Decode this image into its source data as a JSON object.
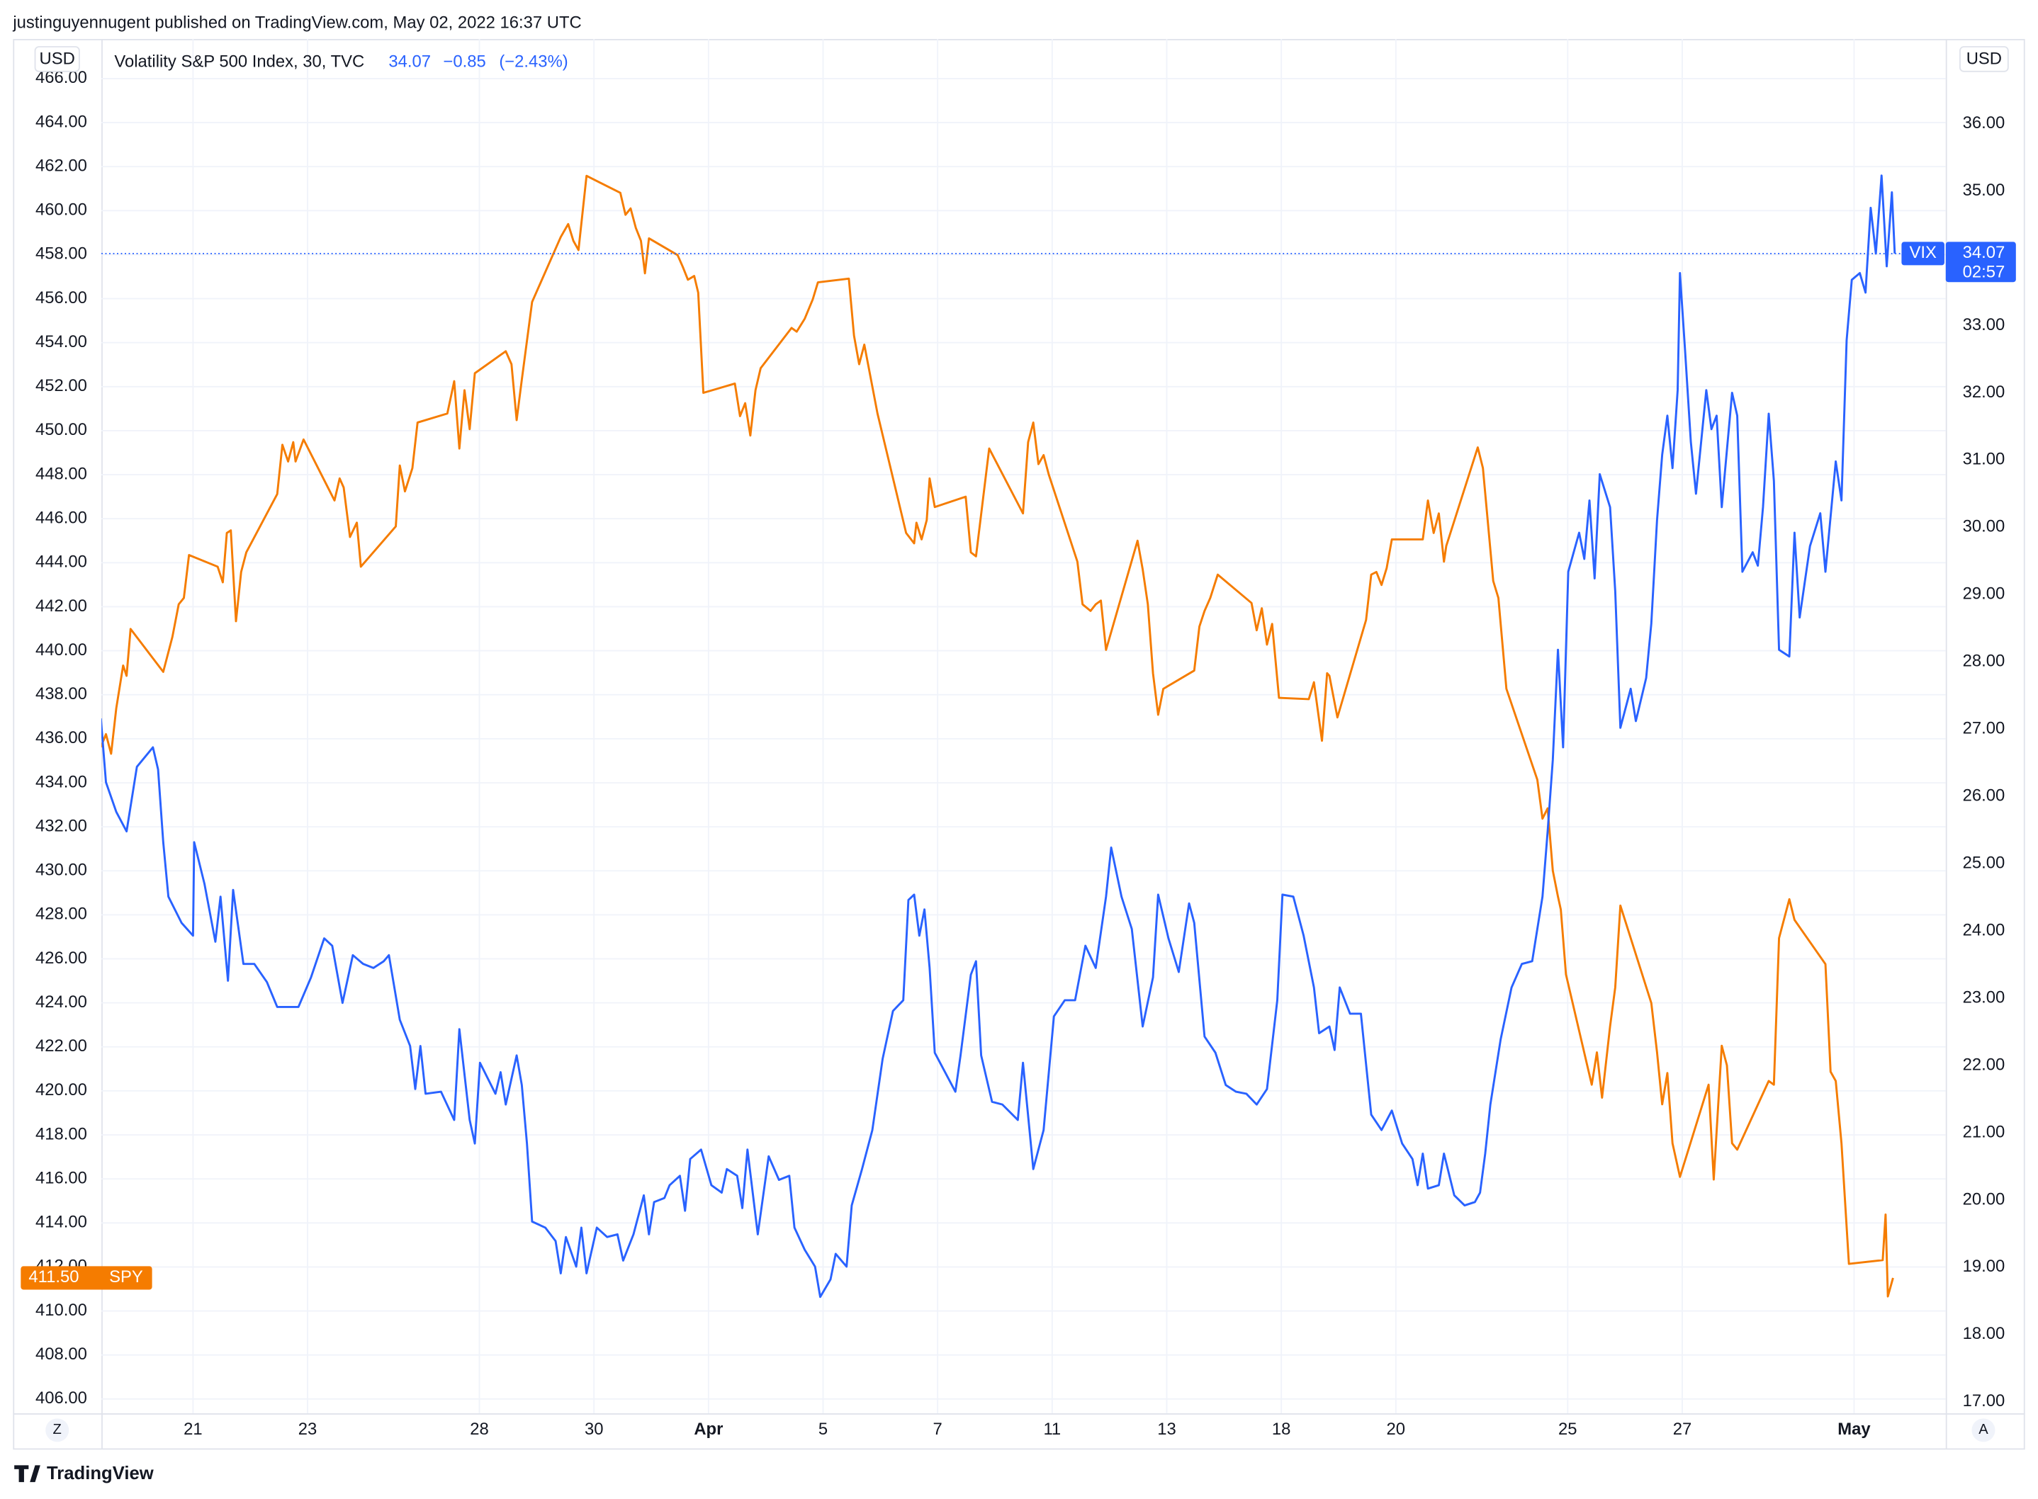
{
  "header": {
    "published": "justinguyennugent published on TradingView.com, May 02, 2022 16:37 UTC",
    "logo": "TradingView"
  },
  "chart_data": {
    "type": "line",
    "legend": {
      "title": "Volatility S&P 500 Index, 30, TVC",
      "last": "34.07",
      "change": "−0.85",
      "change_pct": "(−2.43%)"
    },
    "y_unit": "USD",
    "y2_unit": "USD",
    "axis_buttons": {
      "left": "Z",
      "right": "A"
    },
    "xlim": [
      -1.6,
      30.6
    ],
    "xticks": [
      {
        "value": 0,
        "label": "21"
      },
      {
        "value": 2,
        "label": "23"
      },
      {
        "value": 5,
        "label": "28"
      },
      {
        "value": 7,
        "label": "30"
      },
      {
        "value": 9,
        "label": "Apr"
      },
      {
        "value": 11,
        "label": "5"
      },
      {
        "value": 13,
        "label": "7"
      },
      {
        "value": 15,
        "label": "11"
      },
      {
        "value": 17,
        "label": "13"
      },
      {
        "value": 19,
        "label": "18"
      },
      {
        "value": 21,
        "label": "20"
      },
      {
        "value": 24,
        "label": "25"
      },
      {
        "value": 26,
        "label": "27"
      },
      {
        "value": 29,
        "label": "May"
      }
    ],
    "ylim": [
      405.35,
      467.8
    ],
    "yticks": [
      {
        "value": 406,
        "label": "406.00"
      },
      {
        "value": 408,
        "label": "408.00"
      },
      {
        "value": 410,
        "label": "410.00"
      },
      {
        "value": 412,
        "label": "412.00"
      },
      {
        "value": 414,
        "label": "414.00"
      },
      {
        "value": 416,
        "label": "416.00"
      },
      {
        "value": 418,
        "label": "418.00"
      },
      {
        "value": 420,
        "label": "420.00"
      },
      {
        "value": 422,
        "label": "422.00"
      },
      {
        "value": 424,
        "label": "424.00"
      },
      {
        "value": 426,
        "label": "426.00"
      },
      {
        "value": 428,
        "label": "428.00"
      },
      {
        "value": 430,
        "label": "430.00"
      },
      {
        "value": 432,
        "label": "432.00"
      },
      {
        "value": 434,
        "label": "434.00"
      },
      {
        "value": 436,
        "label": "436.00"
      },
      {
        "value": 438,
        "label": "438.00"
      },
      {
        "value": 440,
        "label": "440.00"
      },
      {
        "value": 442,
        "label": "442.00"
      },
      {
        "value": 444,
        "label": "444.00"
      },
      {
        "value": 446,
        "label": "446.00"
      },
      {
        "value": 448,
        "label": "448.00"
      },
      {
        "value": 450,
        "label": "450.00"
      },
      {
        "value": 452,
        "label": "452.00"
      },
      {
        "value": 454,
        "label": "454.00"
      },
      {
        "value": 456,
        "label": "456.00"
      },
      {
        "value": 458,
        "label": "458.00"
      },
      {
        "value": 460,
        "label": "460.00"
      },
      {
        "value": 462,
        "label": "462.00"
      },
      {
        "value": 464,
        "label": "464.00"
      },
      {
        "value": 466,
        "label": "466.00"
      }
    ],
    "y2lim": [
      16.83,
      37.26
    ],
    "y2ticks": [
      {
        "value": 17,
        "label": "17.00"
      },
      {
        "value": 18,
        "label": "18.00"
      },
      {
        "value": 19,
        "label": "19.00"
      },
      {
        "value": 20,
        "label": "20.00"
      },
      {
        "value": 21,
        "label": "21.00"
      },
      {
        "value": 22,
        "label": "22.00"
      },
      {
        "value": 23,
        "label": "23.00"
      },
      {
        "value": 24,
        "label": "24.00"
      },
      {
        "value": 25,
        "label": "25.00"
      },
      {
        "value": 26,
        "label": "26.00"
      },
      {
        "value": 27,
        "label": "27.00"
      },
      {
        "value": 28,
        "label": "28.00"
      },
      {
        "value": 29,
        "label": "29.00"
      },
      {
        "value": 30,
        "label": "30.00"
      },
      {
        "value": 31,
        "label": "31.00"
      },
      {
        "value": 32,
        "label": "32.00"
      },
      {
        "value": 33,
        "label": "33.00"
      },
      {
        "value": 34,
        "label": "34.00"
      },
      {
        "value": 35,
        "label": "35.00"
      },
      {
        "value": 36,
        "label": "36.00"
      }
    ],
    "grid": true,
    "series": [
      {
        "name": "SPY",
        "color": "#f57c00",
        "axis": "y",
        "last_label": "411.50",
        "x": [
          -1.61,
          -1.52,
          -1.43,
          -1.34,
          -1.22,
          -1.16,
          -1.09,
          -0.52,
          -0.36,
          -0.25,
          -0.16,
          -0.07,
          0.43,
          0.52,
          0.59,
          0.66,
          0.75,
          0.84,
          0.93,
          1.47,
          1.56,
          1.66,
          1.75,
          1.79,
          1.93,
          2.47,
          2.56,
          2.63,
          2.74,
          2.86,
          2.93,
          3.54,
          3.61,
          3.7,
          3.83,
          3.92,
          4.44,
          4.56,
          4.65,
          4.74,
          4.83,
          4.92,
          5.46,
          5.56,
          5.65,
          5.74,
          5.92,
          6.42,
          6.55,
          6.64,
          6.73,
          6.87,
          7.46,
          7.55,
          7.64,
          7.73,
          7.82,
          7.89,
          7.96,
          8.46,
          8.55,
          8.64,
          8.75,
          8.82,
          8.91,
          9.46,
          9.55,
          9.64,
          9.73,
          9.82,
          9.91,
          10.45,
          10.54,
          10.68,
          10.82,
          10.91,
          11.45,
          11.54,
          11.63,
          11.72,
          11.95,
          12.45,
          12.59,
          12.63,
          12.72,
          12.81,
          12.86,
          12.95,
          13.49,
          13.58,
          13.67,
          13.9,
          14.49,
          14.58,
          14.67,
          14.76,
          14.85,
          14.94,
          15.44,
          15.53,
          15.67,
          15.76,
          15.85,
          15.94,
          16.49,
          16.58,
          16.67,
          16.76,
          16.85,
          16.94,
          17.48,
          17.57,
          17.66,
          17.76,
          17.89,
          18.48,
          18.57,
          18.66,
          18.75,
          18.84,
          18.96,
          19.48,
          19.57,
          19.71,
          19.8,
          19.84,
          19.98,
          20.48,
          20.57,
          20.66,
          20.75,
          20.84,
          20.93,
          21.47,
          21.56,
          21.66,
          21.75,
          21.84,
          21.88,
          22.43,
          22.52,
          22.7,
          22.79,
          22.93,
          23.47,
          23.56,
          23.65,
          23.74,
          23.83,
          23.88,
          23.97,
          24.42,
          24.51,
          24.6,
          24.74,
          24.83,
          24.92,
          25.46,
          25.56,
          25.65,
          25.74,
          25.83,
          25.96,
          26.46,
          26.55,
          26.69,
          26.78,
          26.87,
          26.96,
          27.51,
          27.6,
          27.69,
          27.87,
          27.96,
          28.5,
          28.59,
          28.68,
          28.78,
          28.91,
          29.5,
          29.55,
          29.59,
          29.68
        ],
        "values": [
          435.62,
          436.21,
          435.32,
          437.39,
          439.33,
          438.86,
          440.99,
          439.04,
          440.63,
          442.11,
          442.4,
          444.35,
          443.82,
          443.11,
          445.35,
          445.47,
          441.34,
          443.58,
          444.47,
          447.12,
          449.36,
          448.6,
          449.48,
          448.6,
          449.6,
          446.83,
          447.83,
          447.42,
          445.17,
          445.82,
          443.82,
          445.65,
          448.42,
          447.24,
          448.3,
          450.37,
          450.78,
          452.25,
          449.19,
          451.84,
          450.07,
          452.61,
          453.61,
          453.02,
          450.48,
          452.31,
          455.85,
          458.8,
          459.39,
          458.63,
          458.21,
          461.58,
          460.81,
          459.81,
          460.1,
          459.22,
          458.63,
          457.15,
          458.74,
          457.98,
          457.45,
          456.86,
          457.03,
          456.27,
          451.72,
          452.14,
          450.66,
          451.25,
          449.78,
          451.84,
          452.84,
          454.67,
          454.5,
          455.09,
          455.97,
          456.74,
          456.91,
          454.32,
          453.02,
          453.91,
          450.78,
          445.35,
          444.88,
          445.82,
          445.06,
          445.94,
          447.83,
          446.53,
          447.0,
          444.47,
          444.29,
          449.19,
          446.24,
          449.48,
          450.37,
          448.48,
          448.89,
          448.01,
          444.05,
          442.11,
          441.81,
          442.11,
          442.28,
          440.04,
          445.0,
          443.7,
          442.11,
          438.98,
          437.09,
          438.27,
          439.1,
          441.1,
          441.81,
          442.4,
          443.46,
          442.17,
          440.93,
          441.93,
          440.28,
          441.22,
          437.86,
          437.8,
          438.57,
          435.91,
          438.98,
          438.86,
          436.97,
          441.4,
          443.46,
          443.58,
          442.99,
          443.76,
          445.06,
          445.06,
          446.83,
          445.35,
          446.24,
          444.05,
          444.76,
          449.24,
          448.3,
          443.17,
          442.4,
          438.27,
          434.14,
          432.37,
          432.84,
          430.01,
          428.83,
          428.24,
          425.29,
          420.28,
          421.75,
          419.69,
          422.93,
          424.7,
          428.42,
          423.99,
          421.75,
          419.39,
          420.81,
          417.62,
          416.09,
          420.28,
          415.97,
          422.05,
          421.16,
          417.62,
          417.33,
          420.45,
          420.28,
          426.94,
          428.71,
          427.77,
          425.76,
          420.87,
          420.45,
          417.62,
          412.14,
          412.31,
          414.38,
          410.66,
          411.5
        ]
      },
      {
        "name": "VIX",
        "color": "#2962ff",
        "axis": "y2",
        "last_label": "34.07",
        "countdown": "02:57",
        "price_line": true,
        "x": [
          -1.61,
          -1.52,
          -1.34,
          -1.16,
          -0.98,
          -0.7,
          -0.61,
          -0.52,
          -0.43,
          -0.2,
          0,
          0.02,
          0.2,
          0.39,
          0.48,
          0.61,
          0.7,
          0.88,
          1.07,
          1.29,
          1.47,
          1.66,
          1.84,
          2.06,
          2.29,
          2.43,
          2.61,
          2.79,
          2.97,
          3.15,
          3.33,
          3.42,
          3.61,
          3.79,
          3.88,
          3.97,
          4.06,
          4.33,
          4.56,
          4.65,
          4.83,
          4.92,
          5.01,
          5.28,
          5.37,
          5.46,
          5.65,
          5.74,
          5.83,
          5.92,
          6.15,
          6.33,
          6.42,
          6.51,
          6.69,
          6.78,
          6.87,
          7.05,
          7.23,
          7.41,
          7.51,
          7.69,
          7.87,
          7.96,
          8.05,
          8.23,
          8.32,
          8.5,
          8.59,
          8.68,
          8.87,
          9.05,
          9.23,
          9.32,
          9.5,
          9.59,
          9.68,
          9.86,
          10.05,
          10.23,
          10.41,
          10.5,
          10.68,
          10.86,
          10.95,
          11.13,
          11.22,
          11.41,
          11.5,
          11.68,
          11.86,
          12.04,
          12.22,
          12.4,
          12.49,
          12.59,
          12.68,
          12.77,
          12.86,
          12.95,
          13.13,
          13.31,
          13.4,
          13.58,
          13.67,
          13.76,
          13.95,
          14.13,
          14.4,
          14.49,
          14.67,
          14.85,
          15.03,
          15.22,
          15.4,
          15.58,
          15.76,
          15.94,
          16.03,
          16.21,
          16.39,
          16.58,
          16.76,
          16.85,
          17.03,
          17.21,
          17.39,
          17.48,
          17.66,
          17.85,
          18.03,
          18.21,
          18.39,
          18.57,
          18.75,
          18.93,
          19.02,
          19.21,
          19.39,
          19.57,
          19.66,
          19.84,
          19.93,
          20.02,
          20.2,
          20.39,
          20.57,
          20.75,
          20.93,
          21.11,
          21.29,
          21.38,
          21.47,
          21.56,
          21.75,
          21.84,
          22.02,
          22.2,
          22.38,
          22.47,
          22.56,
          22.65,
          22.83,
          23.02,
          23.2,
          23.38,
          23.56,
          23.65,
          23.74,
          23.83,
          23.92,
          24.01,
          24.2,
          24.29,
          24.38,
          24.47,
          24.56,
          24.74,
          24.83,
          24.92,
          25.1,
          25.19,
          25.37,
          25.46,
          25.56,
          25.65,
          25.74,
          25.83,
          25.92,
          25.96,
          26.05,
          26.15,
          26.24,
          26.42,
          26.51,
          26.6,
          26.69,
          26.87,
          26.96,
          27.05,
          27.23,
          27.32,
          27.41,
          27.51,
          27.6,
          27.69,
          27.87,
          27.96,
          28.05,
          28.23,
          28.41,
          28.5,
          28.68,
          28.78,
          28.87,
          28.96,
          29.1,
          29.2,
          29.29,
          29.38,
          29.48,
          29.57,
          29.66,
          29.71
        ],
        "values": [
          27.16,
          26.21,
          25.77,
          25.48,
          26.44,
          26.73,
          26.4,
          25.32,
          24.51,
          24.12,
          23.93,
          25.32,
          24.7,
          23.84,
          24.51,
          23.26,
          24.61,
          23.51,
          23.51,
          23.24,
          22.87,
          22.87,
          22.87,
          23.31,
          23.89,
          23.78,
          22.93,
          23.64,
          23.51,
          23.45,
          23.55,
          23.64,
          22.68,
          22.29,
          21.65,
          22.29,
          21.58,
          21.61,
          21.19,
          22.54,
          21.19,
          20.84,
          22.04,
          21.58,
          21.9,
          21.42,
          22.15,
          21.71,
          20.84,
          19.68,
          19.59,
          19.39,
          18.91,
          19.45,
          19.01,
          19.59,
          18.91,
          19.59,
          19.45,
          19.49,
          19.1,
          19.49,
          20.07,
          19.49,
          19.97,
          20.03,
          20.22,
          20.36,
          19.84,
          20.61,
          20.75,
          20.22,
          20.11,
          20.46,
          20.36,
          19.88,
          20.75,
          19.49,
          20.65,
          20.3,
          20.36,
          19.59,
          19.26,
          19.01,
          18.56,
          18.82,
          19.2,
          19.01,
          19.92,
          20.46,
          21.04,
          22.1,
          22.81,
          22.97,
          24.46,
          24.54,
          23.93,
          24.32,
          23.45,
          22.19,
          21.9,
          21.61,
          22.15,
          23.35,
          23.55,
          22.15,
          21.46,
          21.42,
          21.19,
          22.04,
          20.46,
          21.04,
          22.73,
          22.97,
          22.97,
          23.78,
          23.45,
          24.51,
          25.24,
          24.51,
          24.03,
          22.58,
          23.31,
          24.54,
          23.89,
          23.39,
          24.41,
          24.12,
          22.43,
          22.19,
          21.71,
          21.61,
          21.58,
          21.42,
          21.65,
          22.97,
          24.54,
          24.51,
          23.93,
          23.16,
          22.48,
          22.58,
          22.23,
          23.16,
          22.77,
          22.77,
          21.27,
          21.04,
          21.33,
          20.84,
          20.61,
          20.22,
          20.69,
          20.17,
          20.22,
          20.69,
          20.07,
          19.92,
          19.97,
          20.11,
          20.69,
          21.42,
          22.39,
          23.16,
          23.51,
          23.55,
          24.51,
          25.48,
          26.54,
          28.18,
          26.73,
          29.34,
          29.92,
          29.53,
          30.4,
          29.24,
          30.79,
          30.3,
          29.05,
          27.02,
          27.6,
          27.12,
          27.76,
          28.57,
          30.11,
          31.08,
          31.66,
          30.88,
          32.04,
          33.78,
          32.62,
          31.27,
          30.5,
          32.04,
          31.46,
          31.66,
          30.3,
          32.0,
          31.66,
          29.34,
          29.63,
          29.43,
          30.3,
          31.69,
          30.69,
          28.18,
          28.08,
          29.92,
          28.66,
          29.72,
          30.21,
          29.34,
          30.98,
          30.4,
          32.78,
          33.68,
          33.78,
          33.49,
          34.75,
          34.07,
          35.23,
          33.88,
          34.98,
          34.07
        ]
      }
    ]
  }
}
